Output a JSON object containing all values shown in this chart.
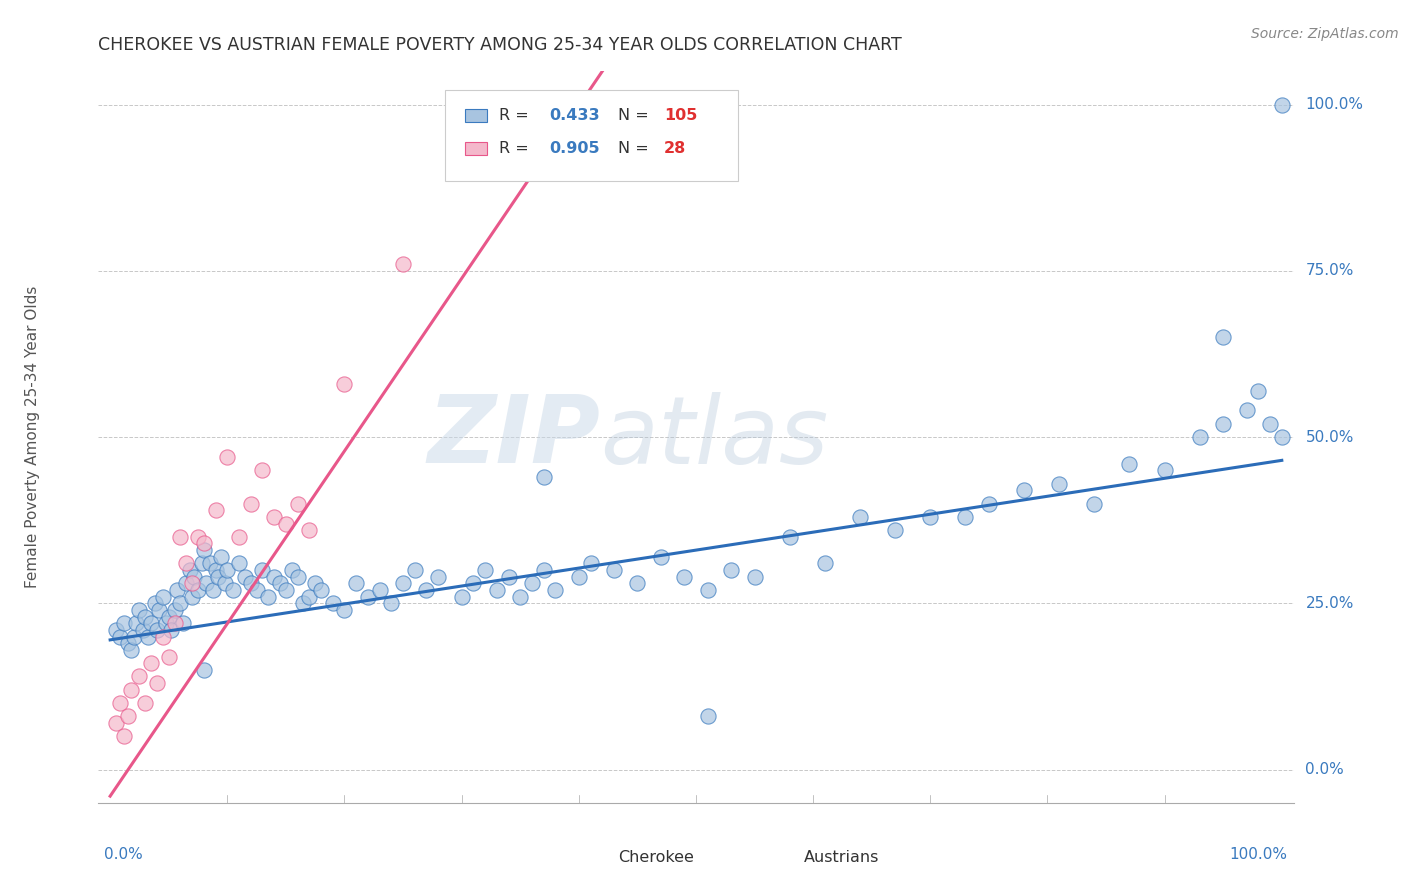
{
  "title": "CHEROKEE VS AUSTRIAN FEMALE POVERTY AMONG 25-34 YEAR OLDS CORRELATION CHART",
  "source": "Source: ZipAtlas.com",
  "ylabel": "Female Poverty Among 25-34 Year Olds",
  "xlim": [
    -0.01,
    1.01
  ],
  "ylim": [
    -0.05,
    1.05
  ],
  "ytick_labels": [
    "0.0%",
    "25.0%",
    "50.0%",
    "75.0%",
    "100.0%"
  ],
  "ytick_vals": [
    0.0,
    0.25,
    0.5,
    0.75,
    1.0
  ],
  "xtick_left_label": "0.0%",
  "xtick_right_label": "100.0%",
  "watermark_zip": "ZIP",
  "watermark_atlas": "atlas",
  "legend_r1": "R = ",
  "legend_v1": "0.433",
  "legend_n1": "N = ",
  "legend_nv1": "105",
  "legend_r2": "R = ",
  "legend_v2": "0.905",
  "legend_n2": "N =  ",
  "legend_nv2": "28",
  "cherokee_color": "#a8c4e0",
  "cherokee_edge": "#3a7abf",
  "austrians_color": "#f4b8cb",
  "austrians_edge": "#e8578a",
  "blue_line_color": "#2b6cb8",
  "pink_line_color": "#e8578a",
  "background_color": "#ffffff",
  "grid_color": "#c8c8c8",
  "title_color": "#333333",
  "tick_color": "#3a7abf",
  "rn_color": "#3a7abf",
  "cherokee_x": [
    0.005,
    0.008,
    0.012,
    0.015,
    0.018,
    0.02,
    0.022,
    0.025,
    0.028,
    0.03,
    0.032,
    0.035,
    0.038,
    0.04,
    0.042,
    0.045,
    0.048,
    0.05,
    0.052,
    0.055,
    0.057,
    0.06,
    0.062,
    0.065,
    0.068,
    0.07,
    0.072,
    0.075,
    0.078,
    0.08,
    0.082,
    0.085,
    0.088,
    0.09,
    0.092,
    0.095,
    0.098,
    0.1,
    0.105,
    0.11,
    0.115,
    0.12,
    0.125,
    0.13,
    0.135,
    0.14,
    0.145,
    0.15,
    0.155,
    0.16,
    0.165,
    0.17,
    0.175,
    0.18,
    0.19,
    0.2,
    0.21,
    0.22,
    0.23,
    0.24,
    0.25,
    0.26,
    0.27,
    0.28,
    0.3,
    0.31,
    0.32,
    0.33,
    0.34,
    0.35,
    0.36,
    0.37,
    0.38,
    0.4,
    0.41,
    0.43,
    0.45,
    0.47,
    0.49,
    0.51,
    0.53,
    0.55,
    0.58,
    0.61,
    0.64,
    0.67,
    0.7,
    0.73,
    0.75,
    0.78,
    0.81,
    0.84,
    0.87,
    0.9,
    0.93,
    0.95,
    0.97,
    0.98,
    0.99,
    1.0,
    1.0,
    0.95,
    0.37,
    0.51,
    0.08
  ],
  "cherokee_y": [
    0.21,
    0.2,
    0.22,
    0.19,
    0.18,
    0.2,
    0.22,
    0.24,
    0.21,
    0.23,
    0.2,
    0.22,
    0.25,
    0.21,
    0.24,
    0.26,
    0.22,
    0.23,
    0.21,
    0.24,
    0.27,
    0.25,
    0.22,
    0.28,
    0.3,
    0.26,
    0.29,
    0.27,
    0.31,
    0.33,
    0.28,
    0.31,
    0.27,
    0.3,
    0.29,
    0.32,
    0.28,
    0.3,
    0.27,
    0.31,
    0.29,
    0.28,
    0.27,
    0.3,
    0.26,
    0.29,
    0.28,
    0.27,
    0.3,
    0.29,
    0.25,
    0.26,
    0.28,
    0.27,
    0.25,
    0.24,
    0.28,
    0.26,
    0.27,
    0.25,
    0.28,
    0.3,
    0.27,
    0.29,
    0.26,
    0.28,
    0.3,
    0.27,
    0.29,
    0.26,
    0.28,
    0.3,
    0.27,
    0.29,
    0.31,
    0.3,
    0.28,
    0.32,
    0.29,
    0.27,
    0.3,
    0.29,
    0.35,
    0.31,
    0.38,
    0.36,
    0.38,
    0.38,
    0.4,
    0.42,
    0.43,
    0.4,
    0.46,
    0.45,
    0.5,
    0.52,
    0.54,
    0.57,
    0.52,
    1.0,
    0.5,
    0.65,
    0.44,
    0.08,
    0.15
  ],
  "austrians_x": [
    0.005,
    0.008,
    0.012,
    0.015,
    0.018,
    0.025,
    0.03,
    0.035,
    0.04,
    0.045,
    0.05,
    0.055,
    0.06,
    0.065,
    0.07,
    0.075,
    0.08,
    0.09,
    0.1,
    0.11,
    0.12,
    0.13,
    0.14,
    0.15,
    0.16,
    0.17,
    0.2,
    0.25
  ],
  "austrians_y": [
    0.07,
    0.1,
    0.05,
    0.08,
    0.12,
    0.14,
    0.1,
    0.16,
    0.13,
    0.2,
    0.17,
    0.22,
    0.35,
    0.31,
    0.28,
    0.35,
    0.34,
    0.39,
    0.47,
    0.35,
    0.4,
    0.45,
    0.38,
    0.37,
    0.4,
    0.36,
    0.58,
    0.76
  ],
  "cherokee_line_x": [
    0.0,
    1.0
  ],
  "cherokee_line_y": [
    0.195,
    0.465
  ],
  "austrians_line_x": [
    0.0,
    0.42
  ],
  "austrians_line_y": [
    -0.04,
    1.05
  ]
}
